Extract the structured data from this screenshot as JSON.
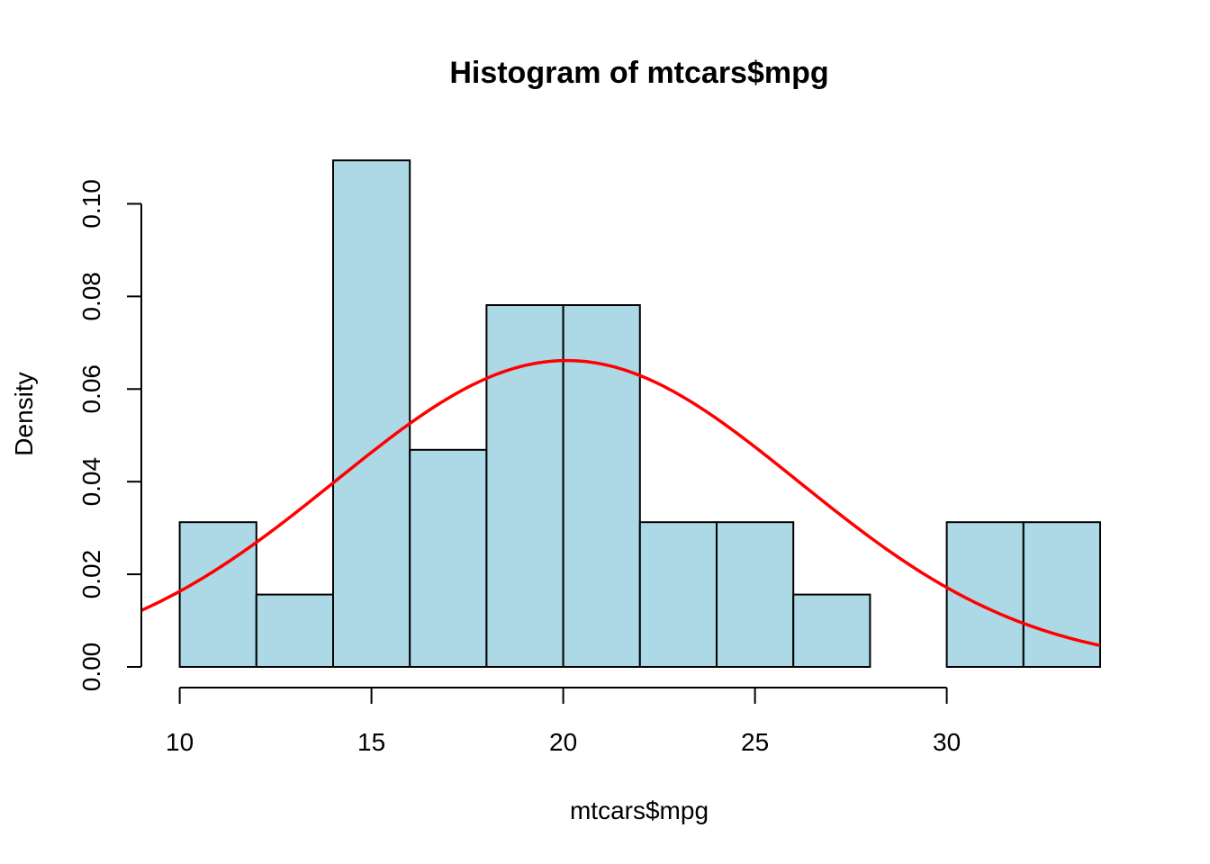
{
  "chart_data": {
    "type": "bar",
    "title": "Histogram of mtcars$mpg",
    "xlabel": "mtcars$mpg",
    "ylabel": "Density",
    "xlim": [
      9,
      34
    ],
    "ylim": [
      0,
      0.11
    ],
    "x_ticks": [
      10,
      15,
      20,
      25,
      30
    ],
    "x_tick_labels": [
      "10",
      "15",
      "20",
      "25",
      "30"
    ],
    "y_ticks": [
      0.0,
      0.02,
      0.04,
      0.06,
      0.08,
      0.1
    ],
    "y_tick_labels": [
      "0.00",
      "0.02",
      "0.04",
      "0.06",
      "0.08",
      "0.10"
    ],
    "bins": [
      {
        "start": 10,
        "end": 12,
        "density": 0.03125
      },
      {
        "start": 12,
        "end": 14,
        "density": 0.015625
      },
      {
        "start": 14,
        "end": 16,
        "density": 0.109375
      },
      {
        "start": 16,
        "end": 18,
        "density": 0.046875
      },
      {
        "start": 18,
        "end": 20,
        "density": 0.078125
      },
      {
        "start": 20,
        "end": 22,
        "density": 0.078125
      },
      {
        "start": 22,
        "end": 24,
        "density": 0.03125
      },
      {
        "start": 24,
        "end": 26,
        "density": 0.03125
      },
      {
        "start": 26,
        "end": 28,
        "density": 0.015625
      },
      {
        "start": 28,
        "end": 30,
        "density": 0
      },
      {
        "start": 30,
        "end": 32,
        "density": 0.03125
      },
      {
        "start": 32,
        "end": 34,
        "density": 0.03125
      }
    ],
    "density_curve": {
      "mean": 20.09,
      "sd": 6.03,
      "x_from": 9,
      "x_to": 34
    },
    "grid": false,
    "colors": {
      "bar_fill": "#ADD8E6",
      "bar_stroke": "#000000",
      "curve": "#FF0000",
      "axis": "#000000"
    }
  }
}
